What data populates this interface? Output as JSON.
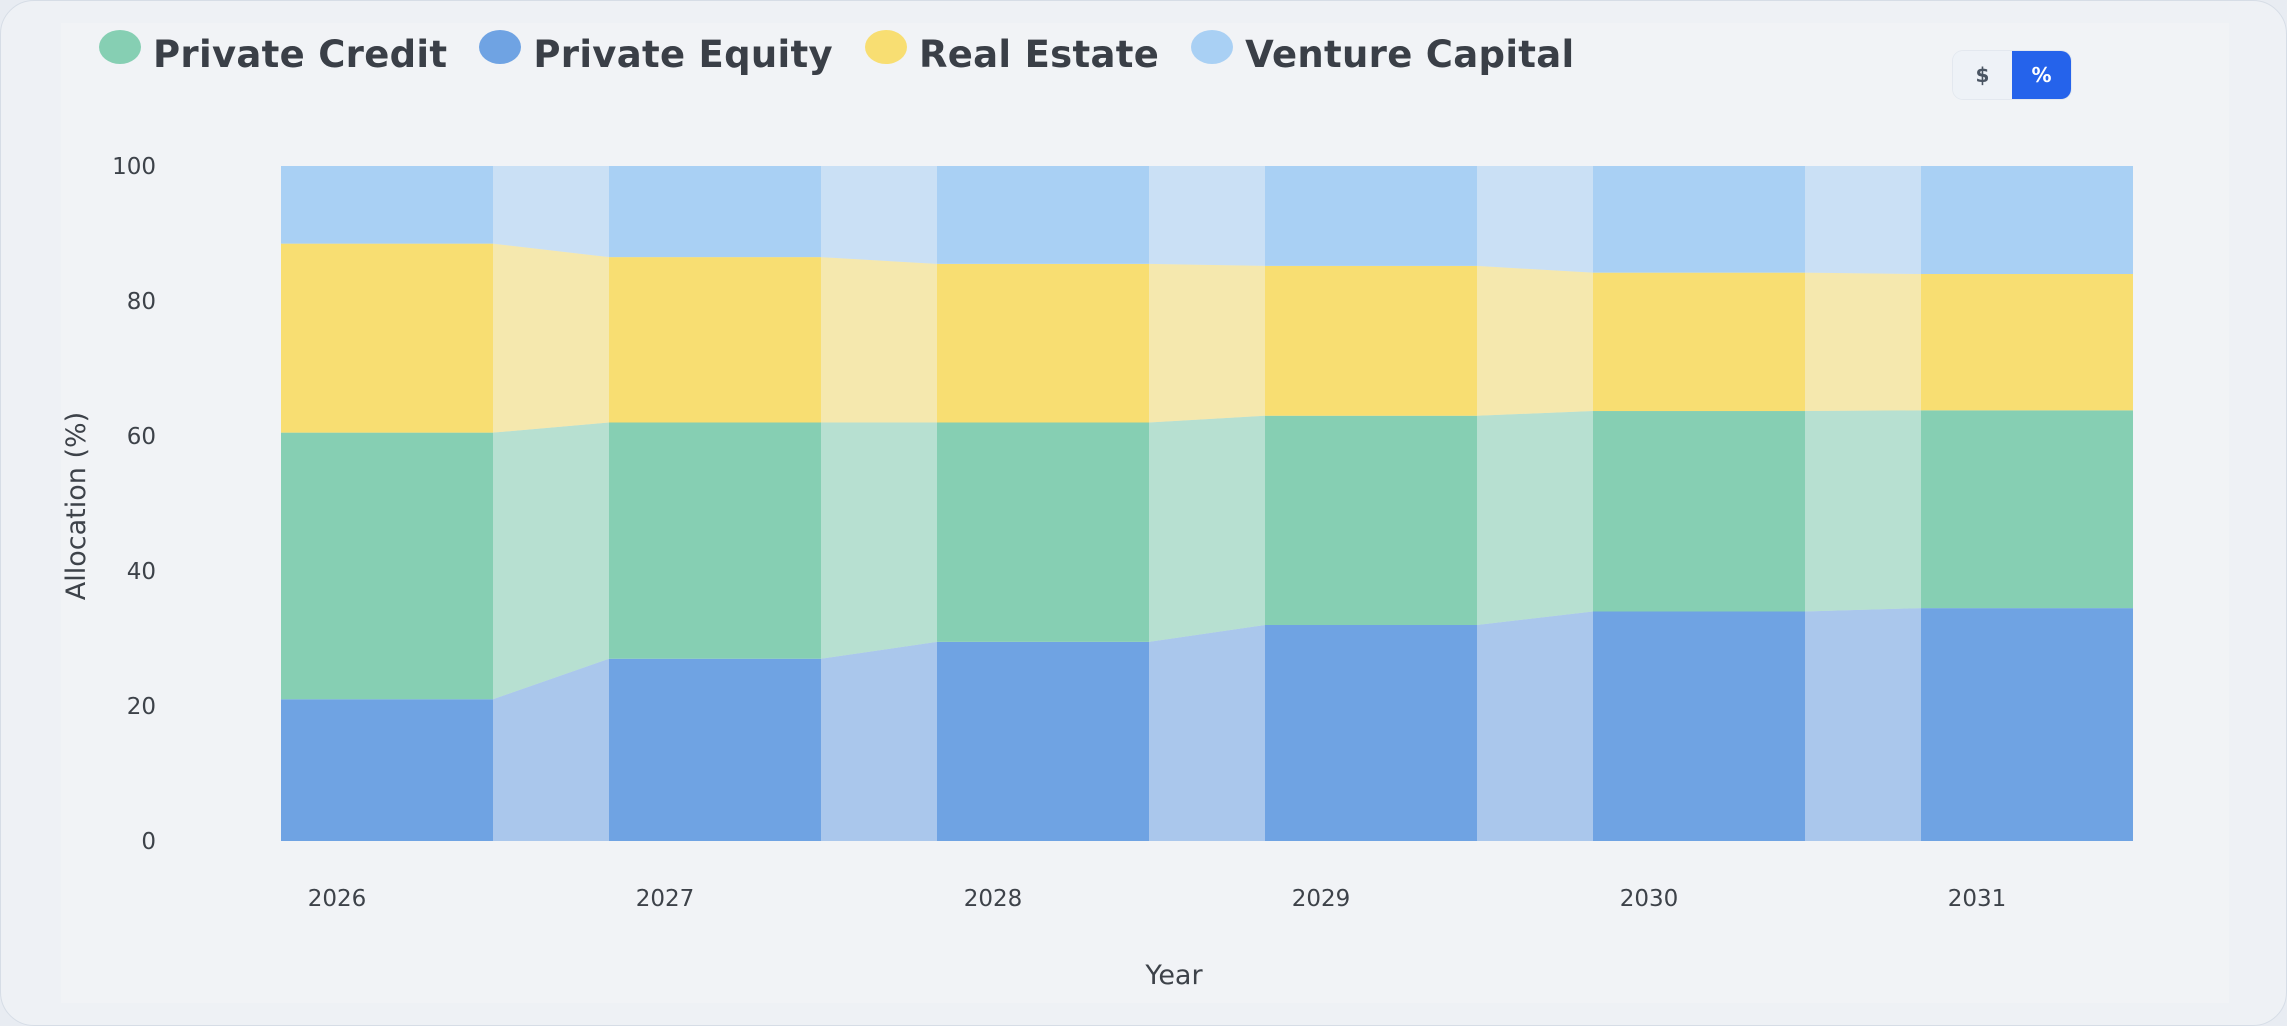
{
  "legend": {
    "items": [
      {
        "label": "Private Credit",
        "color": "#86cfb3"
      },
      {
        "label": "Private Equity",
        "color": "#6fa3e3"
      },
      {
        "label": "Real Estate",
        "color": "#f8de72"
      },
      {
        "label": "Venture Capital",
        "color": "#a9d0f4"
      }
    ]
  },
  "toggle": {
    "dollar_label": "$",
    "percent_label": "%",
    "selected": "%"
  },
  "chart_data": {
    "type": "bar",
    "stacked": true,
    "connected_areas": true,
    "categories": [
      "2026",
      "2027",
      "2028",
      "2029",
      "2030",
      "2031"
    ],
    "xlabel": "Year",
    "ylabel": "Allocation (%)",
    "ylim": [
      0,
      100
    ],
    "yticks": [
      0,
      20,
      40,
      60,
      80,
      100
    ],
    "grid": false,
    "legend_position": "top-left",
    "series": [
      {
        "name": "Private Equity",
        "color": "#6fa3e3",
        "values": [
          21,
          27,
          29.5,
          32,
          34,
          34.5
        ]
      },
      {
        "name": "Private Credit",
        "color": "#86cfb3",
        "values": [
          39.5,
          35,
          32.5,
          31,
          29.7,
          29.3
        ]
      },
      {
        "name": "Real Estate",
        "color": "#f8de72",
        "values": [
          28,
          24.5,
          23.5,
          22.2,
          20.5,
          20.2
        ]
      },
      {
        "name": "Venture Capital",
        "color": "#a9d0f4",
        "values": [
          11.5,
          13.5,
          14.5,
          14.8,
          15.8,
          16
        ]
      }
    ]
  }
}
